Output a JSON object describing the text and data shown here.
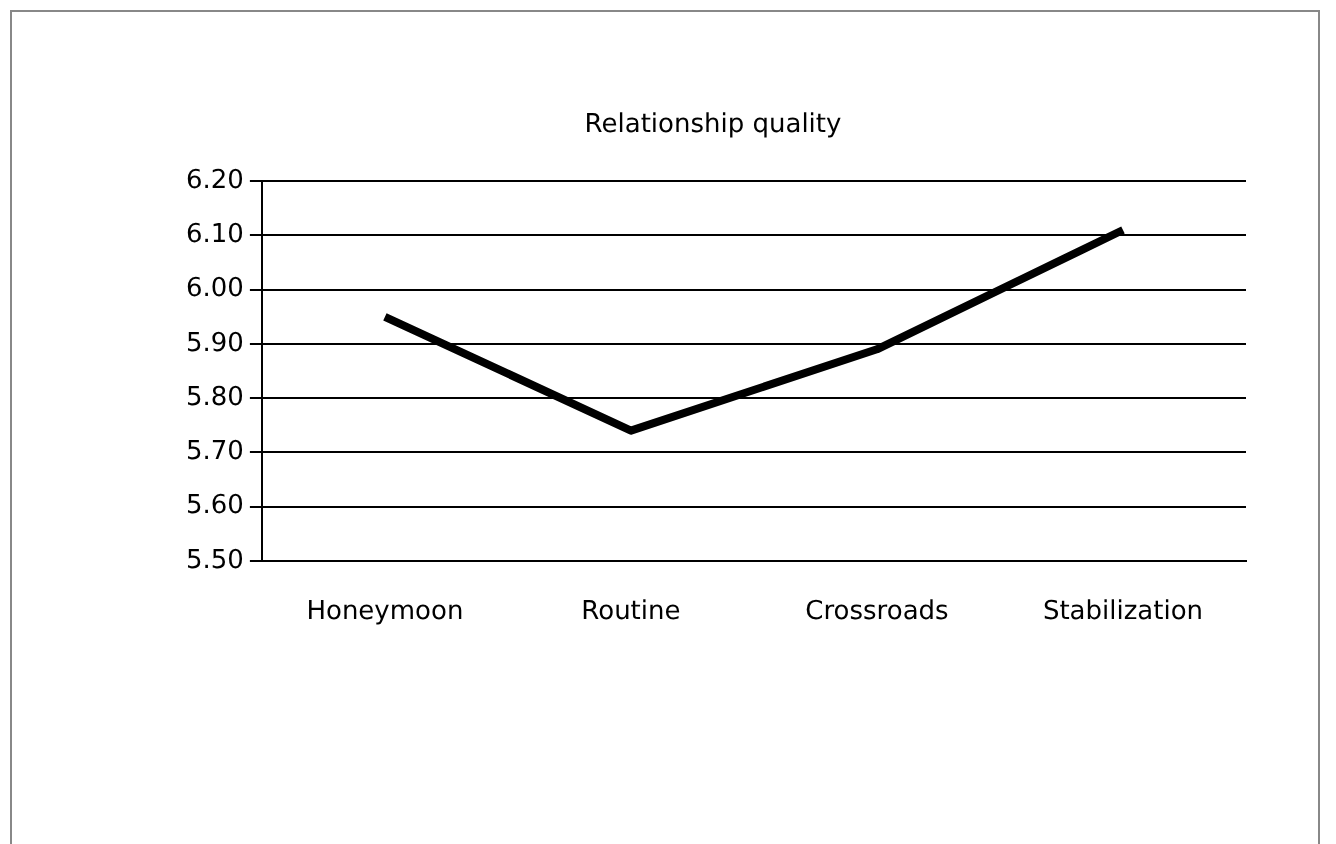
{
  "chart_data": {
    "type": "line",
    "title": "Relationship quality",
    "categories": [
      "Honeymoon",
      "Routine",
      "Crossroads",
      "Stabilization"
    ],
    "series": [
      {
        "color": "#000000",
        "values": [
          5.95,
          5.74,
          5.89,
          6.11
        ]
      }
    ],
    "ylim": [
      5.5,
      6.2
    ],
    "yticks": [
      {
        "value": 5.5,
        "label": "5.50"
      },
      {
        "value": 5.6,
        "label": "5.60"
      },
      {
        "value": 5.7,
        "label": "5.70"
      },
      {
        "value": 5.8,
        "label": "5.80"
      },
      {
        "value": 5.9,
        "label": "5.90"
      },
      {
        "value": 6.0,
        "label": "6.00"
      },
      {
        "value": 6.1,
        "label": "6.10"
      },
      {
        "value": 6.2,
        "label": "6.20"
      }
    ],
    "grid": "y",
    "legend": false,
    "marker": "none",
    "line_style": "solid"
  }
}
